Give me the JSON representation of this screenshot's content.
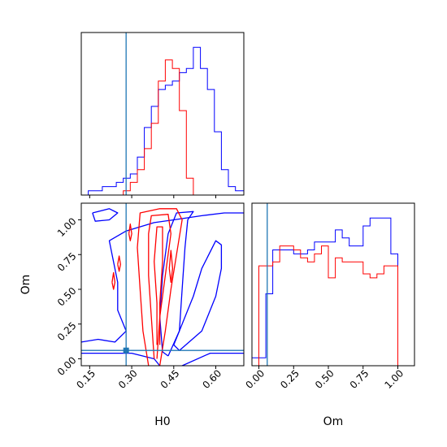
{
  "colors": {
    "series_a": "#0000ff",
    "series_b": "#ff0000",
    "truth": "#1f77b4",
    "frame": "#000000"
  },
  "chart_data": [
    {
      "type": "histogram",
      "panel": "H0 marginal",
      "x_range": [
        0.12,
        0.7
      ],
      "truth_x": 0.28,
      "y_ticks_shown": false,
      "x_tick_labels_shown": false,
      "bin_edges": [
        0.12,
        0.145,
        0.17,
        0.195,
        0.22,
        0.245,
        0.27,
        0.295,
        0.32,
        0.345,
        0.37,
        0.395,
        0.42,
        0.445,
        0.47,
        0.495,
        0.52,
        0.545,
        0.57,
        0.595,
        0.62,
        0.645,
        0.67,
        0.7
      ],
      "series": [
        {
          "color": "#0000ff",
          "counts": [
            0,
            1,
            1,
            2,
            2,
            3,
            4,
            5,
            9,
            16,
            21,
            25,
            26,
            27,
            29,
            30,
            35,
            30,
            25,
            15,
            6,
            2,
            1
          ]
        },
        {
          "color": "#ff0000",
          "counts": [
            0,
            0,
            0,
            0,
            0,
            0,
            1,
            3,
            6,
            11,
            17,
            27,
            32,
            30,
            20,
            4,
            0,
            0,
            0,
            0,
            0,
            0,
            0
          ]
        }
      ]
    },
    {
      "type": "contour",
      "panel": "H0 vs Om",
      "xlabel": "H0",
      "ylabel": "Om",
      "x_range": [
        0.12,
        0.7
      ],
      "y_range": [
        -0.05,
        1.12
      ],
      "x_ticks": [
        0.15,
        0.3,
        0.45,
        0.6
      ],
      "x_tick_labels": [
        "0.15",
        "0.30",
        "0.45",
        "0.60"
      ],
      "y_ticks": [
        0.0,
        0.25,
        0.5,
        0.75,
        1.0
      ],
      "y_tick_labels": [
        "0.00",
        "0.25",
        "0.50",
        "0.75",
        "1.00"
      ],
      "truth_point": [
        0.28,
        0.06
      ],
      "series": [
        {
          "color": "#0000ff",
          "contours": [
            [
              [
                0.12,
                0.12
              ],
              [
                0.18,
                0.14
              ],
              [
                0.24,
                0.12
              ],
              [
                0.28,
                0.2
              ],
              [
                0.25,
                0.35
              ],
              [
                0.25,
                0.55
              ],
              [
                0.23,
                0.75
              ],
              [
                0.22,
                0.85
              ],
              [
                0.28,
                0.92
              ],
              [
                0.38,
                0.98
              ],
              [
                0.45,
                1.0
              ],
              [
                0.55,
                1.03
              ],
              [
                0.63,
                1.05
              ],
              [
                0.7,
                1.05
              ]
            ],
            [
              [
                0.12,
                0.04
              ],
              [
                0.2,
                0.04
              ],
              [
                0.3,
                0.04
              ],
              [
                0.38,
                0.0
              ],
              [
                0.4,
                -0.05
              ]
            ],
            [
              [
                0.48,
                -0.05
              ],
              [
                0.58,
                0.04
              ],
              [
                0.7,
                0.04
              ]
            ],
            [
              [
                0.47,
                0.06
              ],
              [
                0.55,
                0.2
              ],
              [
                0.6,
                0.45
              ],
              [
                0.62,
                0.65
              ],
              [
                0.62,
                0.82
              ],
              [
                0.6,
                0.85
              ],
              [
                0.55,
                0.65
              ],
              [
                0.52,
                0.45
              ],
              [
                0.48,
                0.25
              ],
              [
                0.45,
                0.1
              ],
              [
                0.47,
                0.06
              ]
            ],
            [
              [
                0.16,
                1.05
              ],
              [
                0.22,
                1.08
              ],
              [
                0.25,
                1.05
              ],
              [
                0.22,
                1.0
              ],
              [
                0.17,
                0.99
              ],
              [
                0.16,
                1.05
              ]
            ],
            [
              [
                0.43,
                0.02
              ],
              [
                0.47,
                0.2
              ],
              [
                0.48,
                0.5
              ],
              [
                0.49,
                0.8
              ],
              [
                0.5,
                1.0
              ],
              [
                0.52,
                1.06
              ],
              [
                0.46,
                1.05
              ],
              [
                0.43,
                0.9
              ],
              [
                0.41,
                0.6
              ],
              [
                0.4,
                0.3
              ],
              [
                0.41,
                0.05
              ],
              [
                0.43,
                0.02
              ]
            ]
          ]
        },
        {
          "color": "#ff0000",
          "contours": [
            [
              [
                0.36,
                -0.05
              ],
              [
                0.34,
                0.2
              ],
              [
                0.33,
                0.5
              ],
              [
                0.32,
                0.8
              ],
              [
                0.33,
                1.05
              ],
              [
                0.4,
                1.08
              ],
              [
                0.46,
                1.08
              ],
              [
                0.48,
                1.0
              ],
              [
                0.46,
                0.75
              ],
              [
                0.44,
                0.5
              ],
              [
                0.42,
                0.2
              ],
              [
                0.4,
                -0.05
              ]
            ],
            [
              [
                0.38,
                0.0
              ],
              [
                0.37,
                0.3
              ],
              [
                0.36,
                0.6
              ],
              [
                0.36,
                0.9
              ],
              [
                0.37,
                1.03
              ],
              [
                0.43,
                1.04
              ],
              [
                0.44,
                0.9
              ],
              [
                0.42,
                0.6
              ],
              [
                0.4,
                0.3
              ],
              [
                0.39,
                0.0
              ]
            ],
            [
              [
                0.39,
                0.1
              ],
              [
                0.39,
                0.4
              ],
              [
                0.38,
                0.7
              ],
              [
                0.39,
                0.95
              ],
              [
                0.41,
                0.95
              ],
              [
                0.41,
                0.7
              ],
              [
                0.4,
                0.4
              ],
              [
                0.4,
                0.1
              ]
            ],
            [
              [
                0.434,
                0.65
              ],
              [
                0.44,
                0.78
              ],
              [
                0.446,
                0.65
              ],
              [
                0.44,
                0.55
              ],
              [
                0.434,
                0.65
              ]
            ],
            [
              [
                0.29,
                0.9
              ],
              [
                0.295,
                0.97
              ],
              [
                0.3,
                0.9
              ],
              [
                0.295,
                0.85
              ],
              [
                0.29,
                0.9
              ]
            ],
            [
              [
                0.23,
                0.55
              ],
              [
                0.235,
                0.62
              ],
              [
                0.24,
                0.55
              ],
              [
                0.235,
                0.5
              ],
              [
                0.23,
                0.55
              ]
            ],
            [
              [
                0.25,
                0.68
              ],
              [
                0.255,
                0.74
              ],
              [
                0.26,
                0.68
              ],
              [
                0.255,
                0.63
              ],
              [
                0.25,
                0.68
              ]
            ]
          ]
        }
      ]
    },
    {
      "type": "histogram",
      "panel": "Om marginal",
      "xlabel": "Om",
      "x_range": [
        -0.05,
        1.12
      ],
      "truth_x": 0.06,
      "x_ticks": [
        0.0,
        0.25,
        0.5,
        0.75,
        1.0
      ],
      "x_tick_labels": [
        "0.00",
        "0.25",
        "0.50",
        "0.75",
        "1.00"
      ],
      "y_ticks_shown": false,
      "bin_edges": [
        -0.05,
        0.0,
        0.05,
        0.1,
        0.15,
        0.2,
        0.25,
        0.3,
        0.35,
        0.4,
        0.45,
        0.5,
        0.55,
        0.6,
        0.65,
        0.7,
        0.75,
        0.8,
        0.85,
        0.9,
        0.95,
        1.0,
        1.05,
        1.12
      ],
      "series": [
        {
          "color": "#0000ff",
          "counts": [
            2,
            2,
            18,
            29,
            29,
            29,
            28,
            28,
            29,
            31,
            31,
            31,
            34,
            32,
            30,
            30,
            35,
            37,
            37,
            37,
            28,
            0,
            0
          ]
        },
        {
          "color": "#ff0000",
          "counts": [
            0,
            25,
            25,
            26,
            30,
            30,
            29,
            27,
            26,
            28,
            30,
            22,
            27,
            26,
            26,
            26,
            23,
            22,
            23,
            25,
            25,
            0,
            0
          ]
        }
      ]
    }
  ]
}
